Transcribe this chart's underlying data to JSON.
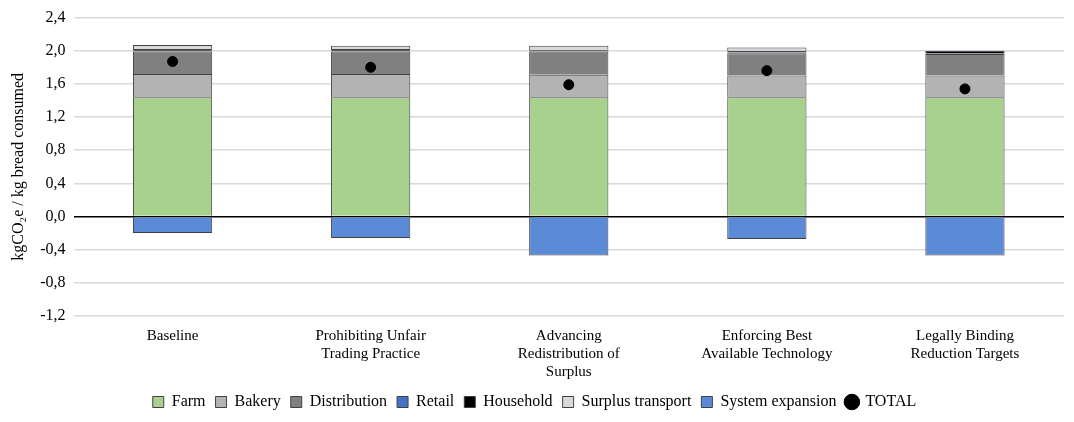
{
  "chart_data": {
    "type": "bar",
    "stacked": true,
    "ylabel": "kgCO₂e / kg bread consumed",
    "categories": [
      "Baseline",
      "Prohibiting Unfair Trading Practice",
      "Advancing Redistribution of Surplus",
      "Enforcing Best Available Technology",
      "Legally Binding Reduction Targets"
    ],
    "series": [
      {
        "name": "Farm",
        "color": "#a9d18e",
        "values": [
          1.44,
          1.44,
          1.44,
          1.44,
          1.44
        ]
      },
      {
        "name": "Bakery",
        "color": "#b3b3b3",
        "values": [
          0.28,
          0.28,
          0.27,
          0.26,
          0.26
        ]
      },
      {
        "name": "Distribution",
        "color": "#808080",
        "values": [
          0.27,
          0.27,
          0.28,
          0.27,
          0.26
        ]
      },
      {
        "name": "Retail",
        "color": "#4472c4",
        "values": [
          0.01,
          0.01,
          0.01,
          0.01,
          0.01
        ]
      },
      {
        "name": "Household",
        "color": "#000000",
        "values": [
          0.02,
          0.02,
          0.01,
          0.02,
          0.03
        ]
      },
      {
        "name": "Surplus transport",
        "color": "#d9d9d9",
        "values": [
          0.05,
          0.04,
          0.05,
          0.04,
          0
        ]
      },
      {
        "name": "System expansion",
        "color": "#5b8bd6",
        "values": [
          -0.2,
          -0.26,
          -0.47,
          -0.27,
          -0.47
        ]
      },
      {
        "name": "TOTAL",
        "type": "scatter",
        "color": "#000000",
        "x": [
          "Baseline",
          "Prohibiting Unfair Trading Practice",
          "Advancing Redistribution of Surplus",
          "Enforcing Best Available Technology",
          "Legally Binding Reduction Targets"
        ],
        "values": [
          1.87,
          1.8,
          1.59,
          1.76,
          1.54
        ]
      }
    ],
    "ylim": [
      -1.2,
      2.4
    ],
    "yticks": [
      {
        "value": -1.2,
        "label": "-1,2"
      },
      {
        "value": -0.8,
        "label": "-0,8"
      },
      {
        "value": -0.4,
        "label": "-0,4"
      },
      {
        "value": 0,
        "label": "0,0"
      },
      {
        "value": 0.4,
        "label": "0,4"
      },
      {
        "value": 0.8,
        "label": "0,8"
      },
      {
        "value": 1.2,
        "label": "1,2"
      },
      {
        "value": 1.6,
        "label": "1,6"
      },
      {
        "value": 2.0,
        "label": "2,0"
      },
      {
        "value": 2.4,
        "label": "2,4"
      }
    ],
    "grid": "y",
    "legend": "bottom",
    "marker": "circle"
  }
}
